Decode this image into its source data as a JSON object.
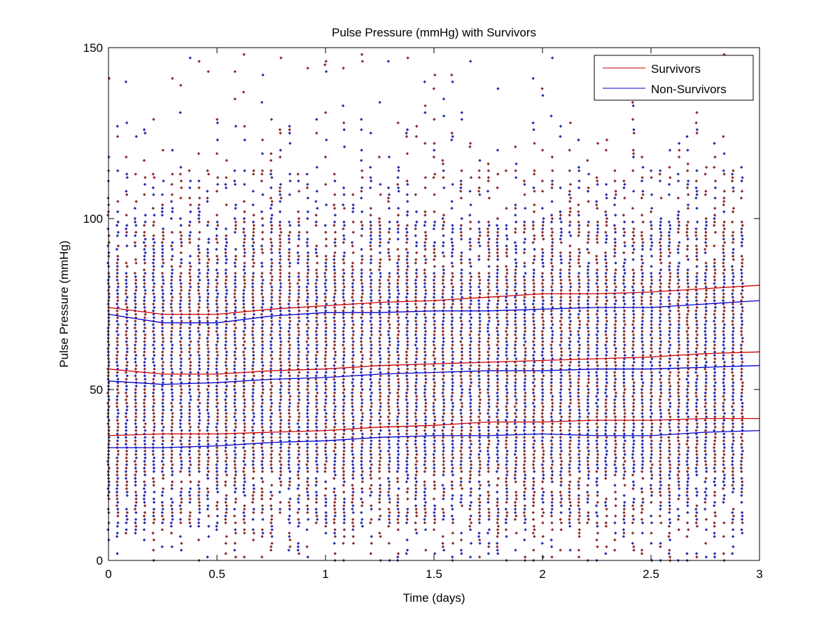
{
  "chart_data": {
    "type": "scatter",
    "title": "Pulse Pressure (mmHg) with Survivors",
    "xlabel": "Time (days)",
    "ylabel": "Pulse Pressure (mmHg)",
    "xlim": [
      0,
      3
    ],
    "ylim": [
      0,
      150
    ],
    "xticks": [
      0,
      0.5,
      1,
      1.5,
      2,
      2.5,
      3
    ],
    "xtick_labels": [
      "0",
      "0.5",
      "1",
      "1.5",
      "2",
      "2.5",
      "3"
    ],
    "yticks": [
      0,
      50,
      100,
      150
    ],
    "ytick_labels": [
      "0",
      "50",
      "100",
      "150"
    ],
    "grid": false,
    "legend_position": "top-right",
    "series": [
      {
        "name": "Survivors",
        "color": "#cc0000",
        "marker_color": "#8b2a2a",
        "lines": {
          "upper": {
            "x": [
              0,
              0.25,
              0.5,
              0.75,
              1,
              1.25,
              1.5,
              1.75,
              2,
              2.25,
              2.5,
              2.75,
              3
            ],
            "y": [
              74,
              72,
              72,
              73.5,
              74.5,
              75.5,
              76,
              77,
              78,
              78,
              78.5,
              79.5,
              80.5
            ]
          },
          "median": {
            "x": [
              0,
              0.25,
              0.5,
              0.75,
              1,
              1.25,
              1.5,
              1.75,
              2,
              2.25,
              2.5,
              2.75,
              3
            ],
            "y": [
              56,
              54.5,
              54.5,
              55.5,
              56,
              57,
              57.5,
              58,
              58.5,
              59,
              59.5,
              60.5,
              61
            ]
          },
          "lower": {
            "x": [
              0,
              0.25,
              0.5,
              0.75,
              1,
              1.25,
              1.5,
              1.75,
              2,
              2.25,
              2.5,
              2.75,
              3
            ],
            "y": [
              36.5,
              37,
              37,
              37.5,
              38,
              39,
              39.5,
              40.5,
              40.5,
              41,
              41,
              41.5,
              41.5
            ]
          }
        }
      },
      {
        "name": "Non-Survivors",
        "color": "#0000cc",
        "marker_color": "#2a2ab0",
        "lines": {
          "upper": {
            "x": [
              0,
              0.25,
              0.5,
              0.75,
              1,
              1.25,
              1.5,
              1.75,
              2,
              2.25,
              2.5,
              2.75,
              3
            ],
            "y": [
              72,
              69.5,
              69.5,
              71.5,
              72.5,
              72.5,
              73,
              73,
              73.5,
              74,
              74,
              75,
              76
            ]
          },
          "median": {
            "x": [
              0,
              0.25,
              0.5,
              0.75,
              1,
              1.25,
              1.5,
              1.75,
              2,
              2.25,
              2.5,
              2.75,
              3
            ],
            "y": [
              52.5,
              51.5,
              52,
              53,
              53.5,
              54.5,
              55,
              55.5,
              55.5,
              56,
              56,
              56.5,
              57
            ]
          },
          "lower": {
            "x": [
              0,
              0.25,
              0.5,
              0.75,
              1,
              1.25,
              1.5,
              1.75,
              2,
              2.25,
              2.5,
              2.75,
              3
            ],
            "y": [
              33,
              33,
              33.5,
              34.5,
              35,
              36,
              36.5,
              36.5,
              37,
              36.5,
              36.5,
              37.5,
              38
            ]
          }
        }
      }
    ],
    "scatter_summary": {
      "x_start": 0,
      "x_step": 0.0417,
      "x_end": 2.96,
      "y_min": 0,
      "y_max": 148,
      "y_step": 1
    }
  }
}
